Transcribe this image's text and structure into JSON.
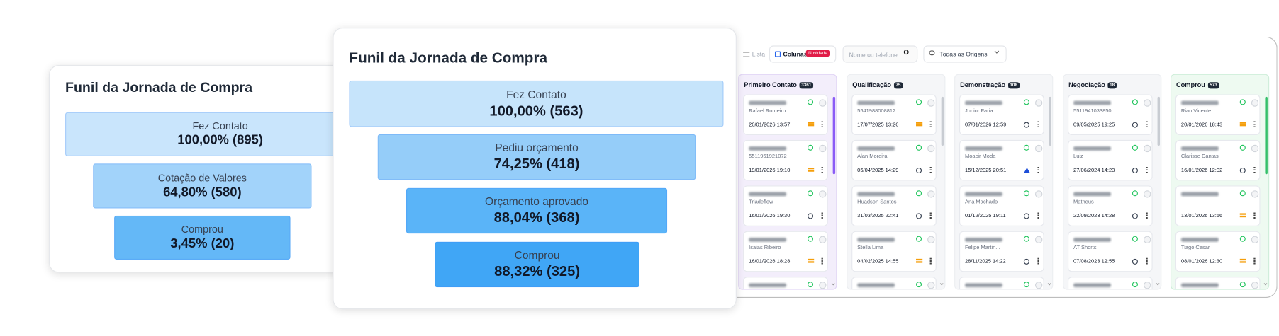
{
  "funnels": [
    {
      "title": "Funil da Jornada de Compra",
      "stages": [
        {
          "label": "Fez Contato",
          "value": "100,00% (895)"
        },
        {
          "label": "Cotação de Valores",
          "value": "64,80% (580)"
        },
        {
          "label": "Comprou",
          "value": "3,45% (20)"
        }
      ]
    },
    {
      "title": "Funil da Jornada de Compra",
      "stages": [
        {
          "label": "Fez Contato",
          "value": "100,00% (563)"
        },
        {
          "label": "Pediu orçamento",
          "value": "74,25% (418)"
        },
        {
          "label": "Orçamento aprovado",
          "value": "88,04% (368)"
        },
        {
          "label": "Comprou",
          "value": "88,32% (325)"
        }
      ]
    }
  ],
  "kanban": {
    "toolbar": {
      "list": "Lista",
      "columns": "Colunas",
      "badge": "Novidade",
      "search": "Nome ou telefone",
      "origin": "Todas as Origens"
    },
    "columns": [
      {
        "name": "Primeiro Contato",
        "count": 3361,
        "cards": [
          {
            "name": "Rafael Romeiro",
            "date": "20/01/2026 13:57"
          },
          {
            "name": "5511951921072",
            "date": "19/01/2026 19:10"
          },
          {
            "name": "Triadeflow",
            "date": "16/01/2026 19:30"
          },
          {
            "name": "Isaias Ribeiro",
            "date": "16/01/2026 18:28"
          }
        ]
      },
      {
        "name": "Qualificação",
        "count": 75,
        "cards": [
          {
            "name": "5541988008812",
            "date": "17/07/2025 13:26"
          },
          {
            "name": "Alan Moreira",
            "date": "05/04/2025 14:29"
          },
          {
            "name": "Huadson Santos",
            "date": "31/03/2025 22:41"
          },
          {
            "name": "Stella Lima",
            "date": "04/02/2025 14:55"
          }
        ]
      },
      {
        "name": "Demonstração",
        "count": 108,
        "cards": [
          {
            "name": "Junior Faria",
            "date": "07/01/2026 12:59"
          },
          {
            "name": "Moacir Moda",
            "date": "15/12/2025 20:51"
          },
          {
            "name": "Ana Machado",
            "date": "01/12/2025 19:11"
          },
          {
            "name": "Felipe Martin...",
            "date": "28/11/2025 14:22"
          }
        ]
      },
      {
        "name": "Negociação",
        "count": 18,
        "cards": [
          {
            "name": "5511941033850",
            "date": "09/05/2025 19:25"
          },
          {
            "name": "Luiz",
            "date": "27/06/2024 14:23"
          },
          {
            "name": "Matheus",
            "date": "22/09/2023 14:28"
          },
          {
            "name": "AT Shorts",
            "date": "07/08/2023 12:55"
          }
        ]
      },
      {
        "name": "Comprou",
        "count": 573,
        "cards": [
          {
            "name": "Rian Vicente",
            "date": "20/01/2026 18:43"
          },
          {
            "name": "Clarisse Dantas",
            "date": "16/01/2026 12:02"
          },
          {
            "name": "-",
            "date": "13/01/2026 13:56"
          },
          {
            "name": "Tiago Cesar",
            "date": "08/01/2026 12:30"
          }
        ]
      }
    ]
  }
}
